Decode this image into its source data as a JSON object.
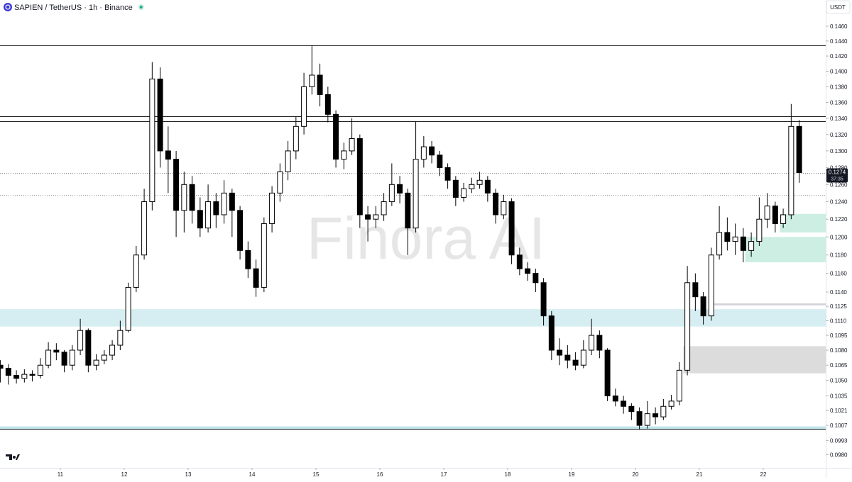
{
  "chart_data": {
    "type": "candlestick",
    "title": "SAPIEN / TetherUS · 1h · Binance",
    "currency": "USDT",
    "watermark": "Finora AI",
    "log_scale": true,
    "up_color": "#ffffff",
    "down_color": "#000000",
    "x": [
      10.0625,
      10.1875,
      10.3125,
      10.4375,
      10.5625,
      10.6875,
      10.8125,
      10.9375,
      11.0625,
      11.1875,
      11.3125,
      11.4375,
      11.5625,
      11.6875,
      11.8125,
      11.9375,
      12.0625,
      12.1875,
      12.3125,
      12.4375,
      12.5625,
      12.6875,
      12.8125,
      12.9375,
      13.0625,
      13.1875,
      13.3125,
      13.4375,
      13.5625,
      13.6875,
      13.8125,
      13.9375,
      14.0625,
      14.1875,
      14.3125,
      14.4375,
      14.5625,
      14.6875,
      14.8125,
      14.9375,
      15.0625,
      15.1875,
      15.3125,
      15.4375,
      15.5625,
      15.6875,
      15.8125,
      15.9375,
      16.0625,
      16.1875,
      16.3125,
      16.4375,
      16.5625,
      16.6875,
      16.8125,
      16.9375,
      17.0625,
      17.1875,
      17.3125,
      17.4375,
      17.5625,
      17.6875,
      17.8125,
      17.9375,
      18.0625,
      18.1875,
      18.3125,
      18.4375,
      18.5625,
      18.6875,
      18.8125,
      18.9375,
      19.0625,
      19.1875,
      19.3125,
      19.4375,
      19.5625,
      19.6875,
      19.8125,
      19.9375,
      20.0625,
      20.1875,
      20.3125,
      20.4375,
      20.5625,
      20.6875,
      20.8125,
      20.9375,
      21.0625,
      21.1875,
      21.3125,
      21.4375,
      21.5625,
      21.6875,
      21.8125,
      21.9375,
      22.0625,
      22.1875,
      22.3125,
      22.4375,
      22.5625
    ],
    "open": [
      0.1065,
      0.1062,
      0.1055,
      0.1052,
      0.1056,
      0.1055,
      0.1065,
      0.108,
      0.1078,
      0.1065,
      0.108,
      0.11,
      0.1065,
      0.107,
      0.1075,
      0.1085,
      0.11,
      0.1145,
      0.118,
      0.124,
      0.139,
      0.13,
      0.129,
      0.123,
      0.126,
      0.123,
      0.121,
      0.124,
      0.1225,
      0.125,
      0.123,
      0.1185,
      0.1165,
      0.1145,
      0.1215,
      0.125,
      0.1275,
      0.13,
      0.133,
      0.138,
      0.1395,
      0.137,
      0.1345,
      0.129,
      0.13,
      0.1315,
      0.1225,
      0.122,
      0.1225,
      0.124,
      0.126,
      0.125,
      0.121,
      0.129,
      0.1305,
      0.1295,
      0.128,
      0.1265,
      0.1245,
      0.1255,
      0.126,
      0.1265,
      0.125,
      0.1225,
      0.124,
      0.118,
      0.1165,
      0.116,
      0.115,
      0.1115,
      0.108,
      0.1075,
      0.107,
      0.1065,
      0.108,
      0.1095,
      0.108,
      0.1035,
      0.103,
      0.1025,
      0.102,
      0.1007,
      0.1018,
      0.1015,
      0.1025,
      0.103,
      0.106,
      0.115,
      0.1135,
      0.1115,
      0.118,
      0.1205,
      0.1195,
      0.12,
      0.1185,
      0.1195,
      0.122,
      0.1235,
      0.1215,
      0.1225,
      0.133
    ],
    "high": [
      0.107,
      0.1066,
      0.106,
      0.1061,
      0.106,
      0.1072,
      0.1088,
      0.1087,
      0.108,
      0.1085,
      0.1112,
      0.1102,
      0.1076,
      0.108,
      0.109,
      0.111,
      0.115,
      0.119,
      0.1255,
      0.1412,
      0.1405,
      0.133,
      0.13,
      0.1275,
      0.127,
      0.1245,
      0.126,
      0.125,
      0.1265,
      0.1255,
      0.1235,
      0.1195,
      0.1175,
      0.1222,
      0.1258,
      0.1285,
      0.1312,
      0.1342,
      0.1398,
      0.1434,
      0.141,
      0.138,
      0.135,
      0.131,
      0.134,
      0.132,
      0.1235,
      0.1235,
      0.125,
      0.1285,
      0.127,
      0.1255,
      0.1336,
      0.1318,
      0.1312,
      0.13,
      0.1285,
      0.127,
      0.1262,
      0.1268,
      0.1275,
      0.127,
      0.1255,
      0.1248,
      0.1244,
      0.1188,
      0.1172,
      0.1165,
      0.1155,
      0.112,
      0.1092,
      0.1085,
      0.1078,
      0.109,
      0.1112,
      0.11,
      0.1082,
      0.1042,
      0.1035,
      0.1028,
      0.1024,
      0.103,
      0.1024,
      0.1032,
      0.1036,
      0.1068,
      0.1168,
      0.116,
      0.114,
      0.1188,
      0.1235,
      0.1222,
      0.1215,
      0.121,
      0.1205,
      0.1245,
      0.125,
      0.124,
      0.1232,
      0.1358,
      0.1338
    ],
    "low": [
      0.1048,
      0.1046,
      0.1047,
      0.1048,
      0.1049,
      0.1052,
      0.1062,
      0.107,
      0.1058,
      0.106,
      0.1075,
      0.1058,
      0.106,
      0.1066,
      0.107,
      0.108,
      0.1098,
      0.114,
      0.1175,
      0.123,
      0.128,
      0.125,
      0.12,
      0.1205,
      0.1215,
      0.12,
      0.1205,
      0.121,
      0.1215,
      0.12,
      0.1175,
      0.1155,
      0.1135,
      0.114,
      0.1205,
      0.124,
      0.1265,
      0.129,
      0.132,
      0.137,
      0.1355,
      0.1335,
      0.128,
      0.1278,
      0.1295,
      0.121,
      0.1195,
      0.121,
      0.1218,
      0.1235,
      0.1238,
      0.118,
      0.1205,
      0.128,
      0.1285,
      0.127,
      0.1255,
      0.1235,
      0.124,
      0.125,
      0.1255,
      0.124,
      0.1215,
      0.122,
      0.117,
      0.1158,
      0.1152,
      0.114,
      0.1105,
      0.107,
      0.1065,
      0.1062,
      0.106,
      0.1062,
      0.1075,
      0.1072,
      0.103,
      0.1025,
      0.1018,
      0.1012,
      0.1003,
      0.1004,
      0.1008,
      0.1012,
      0.1022,
      0.1026,
      0.1055,
      0.112,
      0.1106,
      0.111,
      0.1175,
      0.1185,
      0.118,
      0.1172,
      0.1178,
      0.119,
      0.121,
      0.1205,
      0.121,
      0.122,
      0.1262
    ],
    "close": [
      0.1062,
      0.1055,
      0.1052,
      0.1056,
      0.1055,
      0.1065,
      0.108,
      0.1078,
      0.1065,
      0.108,
      0.11,
      0.1065,
      0.107,
      0.1075,
      0.1085,
      0.11,
      0.1145,
      0.118,
      0.124,
      0.139,
      0.13,
      0.129,
      0.123,
      0.126,
      0.123,
      0.121,
      0.124,
      0.1225,
      0.125,
      0.123,
      0.1185,
      0.1165,
      0.1145,
      0.1215,
      0.125,
      0.1275,
      0.13,
      0.133,
      0.138,
      0.1395,
      0.137,
      0.1345,
      0.129,
      0.13,
      0.1315,
      0.1225,
      0.122,
      0.1225,
      0.124,
      0.126,
      0.125,
      0.121,
      0.129,
      0.1305,
      0.1295,
      0.128,
      0.1265,
      0.1245,
      0.1255,
      0.126,
      0.1265,
      0.125,
      0.1225,
      0.124,
      0.118,
      0.1165,
      0.116,
      0.115,
      0.1115,
      0.108,
      0.1075,
      0.107,
      0.1065,
      0.108,
      0.1095,
      0.108,
      0.1035,
      0.103,
      0.1025,
      0.102,
      0.1007,
      0.1018,
      0.1015,
      0.1025,
      0.103,
      0.106,
      0.115,
      0.1135,
      0.1115,
      0.118,
      0.1205,
      0.1195,
      0.12,
      0.1185,
      0.1195,
      0.122,
      0.1235,
      0.1215,
      0.1225,
      0.133,
      0.1274
    ],
    "xlim": [
      10.056,
      22.978
    ],
    "xticks": [
      11,
      12,
      13,
      14,
      15,
      16,
      17,
      18,
      19,
      20,
      21,
      22
    ],
    "ylim": [
      0.0968,
      0.1496
    ],
    "yticks": [
      {
        "value": 0.146,
        "label": "0.1460"
      },
      {
        "value": 0.144,
        "label": "0.1440"
      },
      {
        "value": 0.142,
        "label": "0.1420"
      },
      {
        "value": 0.14,
        "label": "0.1400"
      },
      {
        "value": 0.138,
        "label": "0.1380"
      },
      {
        "value": 0.136,
        "label": "0.1360"
      },
      {
        "value": 0.134,
        "label": "0.1340"
      },
      {
        "value": 0.132,
        "label": "0.1320"
      },
      {
        "value": 0.13,
        "label": "0.1300"
      },
      {
        "value": 0.128,
        "label": "0.1280"
      },
      {
        "value": 0.126,
        "label": "0.1260"
      },
      {
        "value": 0.124,
        "label": "0.1240"
      },
      {
        "value": 0.122,
        "label": "0.1220"
      },
      {
        "value": 0.12,
        "label": "0.1200"
      },
      {
        "value": 0.118,
        "label": "0.1180"
      },
      {
        "value": 0.116,
        "label": "0.1160"
      },
      {
        "value": 0.114,
        "label": "0.1140"
      },
      {
        "value": 0.1125,
        "label": "0.1125"
      },
      {
        "value": 0.111,
        "label": "0.1110"
      },
      {
        "value": 0.1095,
        "label": "0.1095"
      },
      {
        "value": 0.108,
        "label": "0.1080"
      },
      {
        "value": 0.1065,
        "label": "0.1065"
      },
      {
        "value": 0.105,
        "label": "0.1050"
      },
      {
        "value": 0.1035,
        "label": "0.1035"
      },
      {
        "value": 0.1021,
        "label": "0.1021"
      },
      {
        "value": 0.1007,
        "label": "0.1007"
      },
      {
        "value": 0.0993,
        "label": "0.0993"
      },
      {
        "value": 0.098,
        "label": "0.0980"
      }
    ],
    "levels": [
      {
        "value": 0.1434,
        "style": "solid",
        "color": "#222222"
      },
      {
        "value": 0.1343,
        "style": "solid",
        "color": "#222222"
      },
      {
        "value": 0.1336,
        "style": "solid",
        "color": "#222222"
      },
      {
        "value": 0.1248,
        "style": "dotted",
        "color": "#999999"
      },
      {
        "value": 0.1004,
        "style": "solid",
        "color": "#222222"
      }
    ],
    "zones": [
      {
        "top": 0.1122,
        "bottom": 0.1104,
        "from": 10.056,
        "color": "#d6eef2"
      },
      {
        "top": 0.1006,
        "bottom": 0.1003,
        "from": 10.056,
        "color": "#bfe3ea"
      },
      {
        "top": 0.1226,
        "bottom": 0.1205,
        "from": 22.26,
        "color": "#cdeee3"
      },
      {
        "top": 0.12,
        "bottom": 0.1172,
        "from": 21.72,
        "color": "#cdeee3"
      },
      {
        "top": 0.1084,
        "bottom": 0.1057,
        "from": 20.75,
        "color": "#dcdcdc"
      },
      {
        "top": 0.1128,
        "bottom": 0.1126,
        "from": 21.17,
        "color": "#d2d2d8"
      }
    ],
    "last_price": {
      "value": 0.1274,
      "label": "0.1274",
      "countdown": "37:35"
    }
  }
}
